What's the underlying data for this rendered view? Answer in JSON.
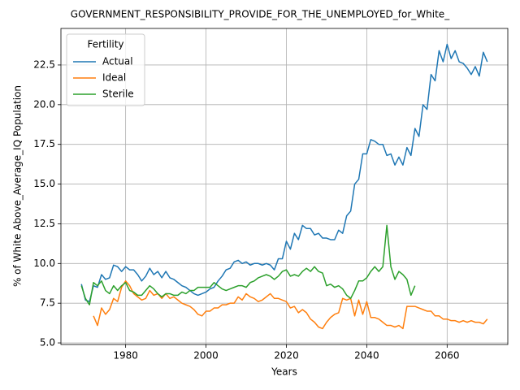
{
  "chart_data": {
    "type": "line",
    "title": "GOVERNMENT_RESPONSIBILITY_PROVIDE_FOR_THE_UNEMPLOYED_for_White_",
    "xlabel": "Years",
    "ylabel": "% of White Above_Average_IQ Population",
    "legend_title": "Fertility",
    "legend": "upper left",
    "grid": true,
    "xlim": [
      1963.9,
      2075.1
    ],
    "ylim": [
      4.9,
      24.8
    ],
    "xticks": [
      1980,
      2000,
      2020,
      2040,
      2060
    ],
    "yticks": [
      {
        "value": 5,
        "label": "5.0"
      },
      {
        "value": 7.5,
        "label": "7.5"
      },
      {
        "value": 10,
        "label": "10.0"
      },
      {
        "value": 12.5,
        "label": "12.5"
      },
      {
        "value": 15,
        "label": "15.0"
      },
      {
        "value": 17.5,
        "label": "17.5"
      },
      {
        "value": 20,
        "label": "20.0"
      },
      {
        "value": 22.5,
        "label": "22.5"
      }
    ],
    "x": [
      1969,
      1970,
      1971,
      1972,
      1973,
      1974,
      1975,
      1976,
      1977,
      1978,
      1979,
      1980,
      1981,
      1982,
      1983,
      1984,
      1985,
      1986,
      1987,
      1988,
      1989,
      1990,
      1991,
      1992,
      1993,
      1994,
      1995,
      1996,
      1997,
      1998,
      1999,
      2000,
      2001,
      2002,
      2003,
      2004,
      2005,
      2006,
      2007,
      2008,
      2009,
      2010,
      2011,
      2012,
      2013,
      2014,
      2015,
      2016,
      2017,
      2018,
      2019,
      2020,
      2021,
      2022,
      2023,
      2024,
      2025,
      2026,
      2027,
      2028,
      2029,
      2030,
      2031,
      2032,
      2033,
      2034,
      2035,
      2036,
      2037,
      2038,
      2039,
      2040,
      2041,
      2042,
      2043,
      2044,
      2045,
      2046,
      2047,
      2048,
      2049,
      2050,
      2051,
      2052,
      2053,
      2054,
      2055,
      2056,
      2057,
      2058,
      2059,
      2060,
      2061,
      2062,
      2063,
      2064,
      2065,
      2066,
      2067,
      2068,
      2069,
      2070
    ],
    "series": [
      {
        "name": "Actual",
        "color": "#1f77b4",
        "values": [
          8.7,
          7.7,
          7.6,
          8.6,
          8.5,
          9.3,
          9.0,
          9.1,
          9.9,
          9.8,
          9.5,
          9.8,
          9.6,
          9.6,
          9.3,
          8.9,
          9.2,
          9.7,
          9.3,
          9.5,
          9.1,
          9.5,
          9.1,
          9.0,
          8.8,
          8.6,
          8.5,
          8.3,
          8.1,
          8.0,
          8.1,
          8.2,
          8.4,
          8.5,
          8.9,
          9.2,
          9.6,
          9.7,
          10.1,
          10.2,
          10.0,
          10.1,
          9.9,
          10.0,
          10.0,
          9.9,
          10.0,
          9.9,
          9.6,
          10.3,
          10.3,
          11.4,
          10.9,
          11.9,
          11.5,
          12.4,
          12.2,
          12.2,
          11.8,
          11.9,
          11.6,
          11.6,
          11.5,
          11.5,
          12.1,
          11.9,
          13.0,
          13.3,
          15.0,
          15.3,
          16.9,
          16.9,
          17.8,
          17.7,
          17.5,
          17.5,
          16.8,
          16.9,
          16.2,
          16.7,
          16.2,
          17.3,
          16.8,
          18.5,
          18.0,
          20.0,
          19.7,
          21.9,
          21.5,
          23.4,
          22.7,
          23.8,
          22.9,
          23.4,
          22.7,
          22.6,
          22.3,
          21.9,
          22.4,
          21.8,
          23.3,
          22.7
        ]
      },
      {
        "name": "Ideal",
        "color": "#ff7f0e",
        "values": [
          null,
          null,
          null,
          6.7,
          6.1,
          7.2,
          6.8,
          7.1,
          7.8,
          7.6,
          8.5,
          8.9,
          8.6,
          8.1,
          7.9,
          7.7,
          7.8,
          8.3,
          8.0,
          8.1,
          7.8,
          8.1,
          7.8,
          7.9,
          7.7,
          7.5,
          7.4,
          7.3,
          7.1,
          6.8,
          6.7,
          7.0,
          7.0,
          7.2,
          7.2,
          7.4,
          7.4,
          7.5,
          7.5,
          7.9,
          7.7,
          8.1,
          7.9,
          7.8,
          7.6,
          7.7,
          7.9,
          8.1,
          7.8,
          7.8,
          7.7,
          7.6,
          7.2,
          7.3,
          6.9,
          7.1,
          6.9,
          6.5,
          6.3,
          6.0,
          5.9,
          6.3,
          6.6,
          6.8,
          6.9,
          7.8,
          7.7,
          7.8,
          6.7,
          7.7,
          6.8,
          7.6,
          6.6,
          6.6,
          6.5,
          6.3,
          6.1,
          6.1,
          6.0,
          6.1,
          5.9,
          7.3,
          7.3,
          7.3,
          7.2,
          7.1,
          7.0,
          7.0,
          6.7,
          6.7,
          6.5,
          6.5,
          6.4,
          6.4,
          6.3,
          6.4,
          6.3,
          6.4,
          6.3,
          6.3,
          6.2,
          6.5
        ]
      },
      {
        "name": "Sterile",
        "color": "#2ca02c",
        "values": [
          8.6,
          7.8,
          7.4,
          8.8,
          8.6,
          8.9,
          8.3,
          8.1,
          8.6,
          8.3,
          8.6,
          8.8,
          8.3,
          8.2,
          8.0,
          8.0,
          8.3,
          8.6,
          8.4,
          8.1,
          7.9,
          8.1,
          8.1,
          8.0,
          8.0,
          8.2,
          8.1,
          8.3,
          8.3,
          8.5,
          8.5,
          8.5,
          8.5,
          8.8,
          8.6,
          8.4,
          8.3,
          8.4,
          8.5,
          8.6,
          8.6,
          8.5,
          8.8,
          8.9,
          9.1,
          9.2,
          9.3,
          9.2,
          9.0,
          9.2,
          9.5,
          9.6,
          9.2,
          9.3,
          9.2,
          9.5,
          9.7,
          9.5,
          9.8,
          9.5,
          9.4,
          8.6,
          8.7,
          8.5,
          8.6,
          8.4,
          8.0,
          7.8,
          8.3,
          8.9,
          8.9,
          9.1,
          9.5,
          9.8,
          9.5,
          9.8,
          12.4,
          9.8,
          9.0,
          9.5,
          9.3,
          9.0,
          8.0,
          8.6,
          null,
          null,
          null,
          null,
          null,
          null,
          null,
          null,
          null,
          null,
          null,
          null,
          null,
          null,
          null,
          null,
          null,
          null
        ]
      }
    ]
  }
}
